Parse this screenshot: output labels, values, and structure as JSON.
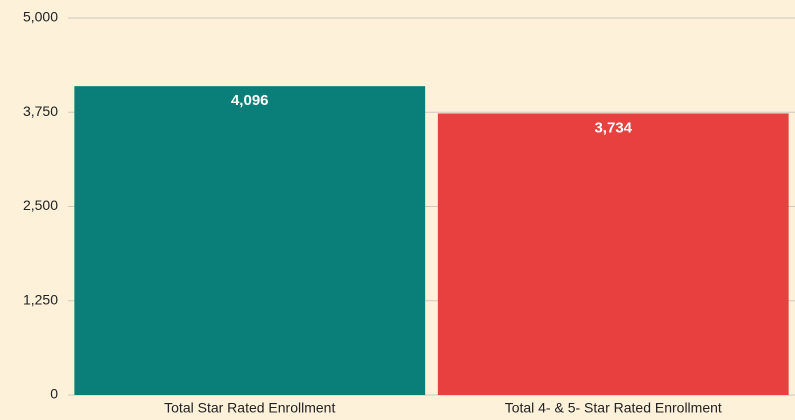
{
  "chart_data": {
    "type": "bar",
    "categories": [
      "Total Star Rated Enrollment",
      "Total 4- & 5- Star Rated Enrollment"
    ],
    "values": [
      4096,
      3734
    ],
    "value_labels": [
      "4,096",
      "3,734"
    ],
    "colors": [
      "#0a7e78",
      "#e83f3f"
    ],
    "ylim": [
      0,
      5000
    ],
    "yticks": [
      0,
      {
        "value": 1250,
        "label": "1,250"
      },
      {
        "value": 2500,
        "label": "2,500"
      },
      {
        "value": 3750,
        "label": "3,750"
      },
      {
        "value": 5000,
        "label": "5,000"
      }
    ],
    "grid": true
  }
}
